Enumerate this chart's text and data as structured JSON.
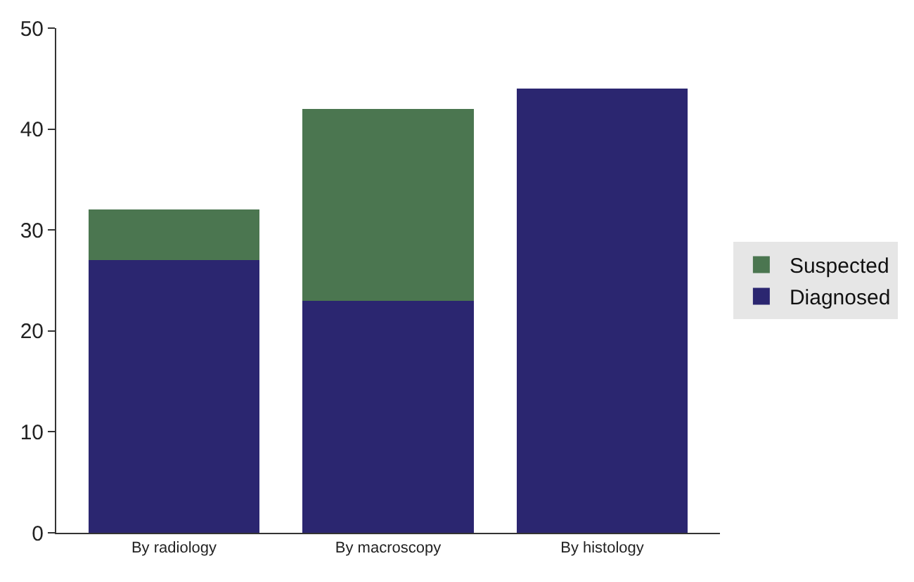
{
  "chart_data": {
    "type": "bar",
    "stacked": true,
    "categories": [
      "By radiology",
      "By macroscopy",
      "By histology"
    ],
    "series": [
      {
        "name": "Diagnosed",
        "color": "#2b2670",
        "values": [
          27,
          23,
          44
        ]
      },
      {
        "name": "Suspected",
        "color": "#4b7650",
        "values": [
          5,
          19,
          0
        ]
      }
    ],
    "ylim": [
      0,
      50
    ],
    "yticks": [
      0,
      10,
      20,
      30,
      40,
      50
    ],
    "grid": false,
    "legend": "right"
  }
}
